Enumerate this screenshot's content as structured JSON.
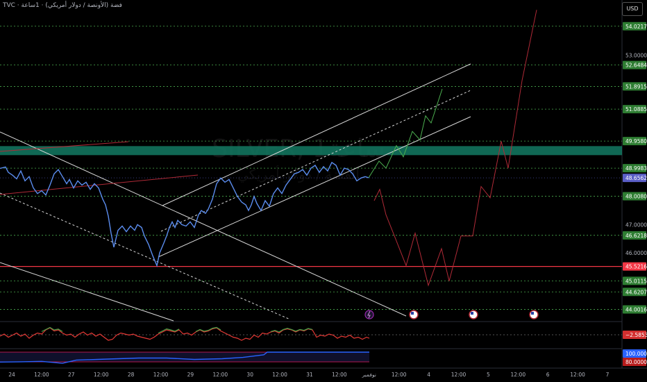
{
  "header": {
    "symbol_line": "TVC · فضة (الأونصة / دولار أمريكي) · 1ساعة",
    "currency": "USD"
  },
  "watermark": {
    "symbol": "SILVER, 1ساعة",
    "subtitle": "الفضة / دولار أمريكي"
  },
  "chart_data": {
    "type": "line",
    "title": "",
    "price_axis": {
      "range": [
        43.57,
        54.95
      ],
      "ticks": [
        "53.0000",
        "47.0000",
        "46.0000"
      ]
    },
    "time_axis": {
      "labels": [
        "24",
        "12:00",
        "27",
        "12:00",
        "28",
        "12:00",
        "29",
        "12:00",
        "30",
        "12:00",
        "31",
        "12:00",
        "نوفمبر",
        "12:00",
        "4",
        "12:00",
        "5",
        "12:00",
        "6",
        "12:00",
        "7"
      ]
    },
    "level_lines": [
      {
        "value": 54.0217,
        "label": "54.0217",
        "color": "#4caf50"
      },
      {
        "value": 52.6484,
        "label": "52.6484",
        "color": "#4caf50"
      },
      {
        "value": 51.8915,
        "label": "51.8915",
        "color": "#4caf50"
      },
      {
        "value": 51.0885,
        "label": "51.0885",
        "color": "#4caf50"
      },
      {
        "value": 49.958,
        "label": "49.9580",
        "color": "#4caf50"
      },
      {
        "value": 48.9983,
        "label": "48.9983",
        "color": "#4caf50"
      },
      {
        "value": 48.008,
        "label": "48.0080",
        "color": "#4caf50"
      },
      {
        "value": 46.6218,
        "label": "46.6218",
        "color": "#4caf50"
      },
      {
        "value": 45.5216,
        "label": "45.5216",
        "color": "#f23645"
      },
      {
        "value": 45.0115,
        "label": "45.0115",
        "color": "#4caf50"
      },
      {
        "value": 44.6207,
        "label": "44.6207",
        "color": "#4caf50"
      },
      {
        "value": 44.0016,
        "label": "44.0016",
        "color": "#4caf50"
      }
    ],
    "last_price": {
      "value": 48.6562,
      "label": "48.6562",
      "color": "#5b5fc7"
    },
    "resistance_zone": [
      49.46,
      49.78
    ],
    "series": [
      {
        "style": "price",
        "color": "#5b8def",
        "points": [
          [
            0,
            48.99
          ],
          [
            8,
            49.04
          ],
          [
            12,
            48.85
          ],
          [
            18,
            48.75
          ],
          [
            24,
            48.62
          ],
          [
            30,
            48.9
          ],
          [
            36,
            48.55
          ],
          [
            42,
            48.7
          ],
          [
            48,
            48.3
          ],
          [
            54,
            48.1
          ],
          [
            60,
            48.2
          ],
          [
            66,
            48.05
          ],
          [
            72,
            48.4
          ],
          [
            78,
            48.8
          ],
          [
            84,
            48.95
          ],
          [
            90,
            48.7
          ],
          [
            96,
            48.45
          ],
          [
            100,
            48.6
          ],
          [
            106,
            48.3
          ],
          [
            112,
            48.55
          ],
          [
            118,
            48.4
          ],
          [
            124,
            48.5
          ],
          [
            130,
            48.25
          ],
          [
            136,
            48.45
          ],
          [
            142,
            48.3
          ],
          [
            148,
            47.9
          ],
          [
            152,
            47.7
          ],
          [
            156,
            47.3
          ],
          [
            160,
            46.7
          ],
          [
            164,
            46.2
          ],
          [
            170,
            46.8
          ],
          [
            176,
            46.95
          ],
          [
            182,
            46.75
          ],
          [
            188,
            46.95
          ],
          [
            194,
            46.8
          ],
          [
            198,
            47.0
          ],
          [
            204,
            46.9
          ],
          [
            208,
            46.6
          ],
          [
            214,
            46.3
          ],
          [
            220,
            45.9
          ],
          [
            226,
            45.55
          ],
          [
            230,
            46.0
          ],
          [
            236,
            46.35
          ],
          [
            240,
            46.6
          ],
          [
            244,
            46.9
          ],
          [
            248,
            47.1
          ],
          [
            252,
            46.9
          ],
          [
            256,
            47.15
          ],
          [
            262,
            47.0
          ],
          [
            268,
            46.95
          ],
          [
            274,
            47.1
          ],
          [
            280,
            46.9
          ],
          [
            286,
            47.35
          ],
          [
            290,
            47.5
          ],
          [
            296,
            47.4
          ],
          [
            300,
            47.55
          ],
          [
            306,
            47.9
          ],
          [
            312,
            48.45
          ],
          [
            318,
            48.65
          ],
          [
            324,
            48.5
          ],
          [
            330,
            48.6
          ],
          [
            336,
            48.3
          ],
          [
            342,
            48.0
          ],
          [
            348,
            47.8
          ],
          [
            354,
            47.7
          ],
          [
            358,
            47.5
          ],
          [
            362,
            47.7
          ],
          [
            366,
            48.0
          ],
          [
            370,
            47.75
          ],
          [
            376,
            47.5
          ],
          [
            382,
            47.85
          ],
          [
            388,
            47.65
          ],
          [
            394,
            48.1
          ],
          [
            400,
            48.3
          ],
          [
            406,
            48.1
          ],
          [
            412,
            48.4
          ],
          [
            418,
            48.6
          ],
          [
            424,
            48.8
          ],
          [
            430,
            48.85
          ],
          [
            436,
            48.95
          ],
          [
            442,
            48.75
          ],
          [
            448,
            49.0
          ],
          [
            454,
            49.1
          ],
          [
            460,
            48.85
          ],
          [
            466,
            49.05
          ],
          [
            472,
            48.9
          ],
          [
            478,
            49.2
          ],
          [
            484,
            49.1
          ],
          [
            490,
            48.75
          ],
          [
            496,
            49.0
          ],
          [
            502,
            48.95
          ],
          [
            508,
            48.8
          ],
          [
            514,
            48.55
          ],
          [
            520,
            48.65
          ],
          [
            526,
            48.7
          ],
          [
            531,
            48.66
          ]
        ]
      },
      {
        "style": "projection-up",
        "color": "#4caf50",
        "points": [
          [
            531,
            48.66
          ],
          [
            546,
            49.25
          ],
          [
            556,
            49.0
          ],
          [
            571,
            49.8
          ],
          [
            581,
            49.4
          ],
          [
            594,
            50.3
          ],
          [
            605,
            50.0
          ],
          [
            613,
            50.85
          ],
          [
            621,
            50.6
          ],
          [
            637,
            51.8
          ]
        ]
      },
      {
        "style": "projection-down",
        "color": "#b02a37",
        "points": [
          [
            539,
            47.85
          ],
          [
            547,
            48.25
          ],
          [
            556,
            47.35
          ],
          [
            569,
            46.55
          ],
          [
            585,
            45.55
          ],
          [
            598,
            46.7
          ],
          [
            617,
            44.85
          ],
          [
            636,
            46.15
          ],
          [
            647,
            45.0
          ],
          [
            664,
            46.6
          ],
          [
            681,
            46.6
          ],
          [
            693,
            48.35
          ],
          [
            706,
            47.95
          ],
          [
            722,
            49.95
          ],
          [
            732,
            49.0
          ],
          [
            752,
            52.1
          ],
          [
            773,
            54.6
          ]
        ]
      }
    ],
    "rsi": {
      "series_red": [
        [
          0,
          0.4
        ],
        [
          6,
          0.5
        ],
        [
          12,
          0.35
        ],
        [
          18,
          0.45
        ],
        [
          24,
          0.55
        ],
        [
          30,
          0.4
        ],
        [
          36,
          0.5
        ],
        [
          42,
          0.3
        ],
        [
          48,
          0.45
        ],
        [
          54,
          0.55
        ],
        [
          60,
          0.5
        ],
        [
          66,
          0.7
        ],
        [
          72,
          0.8
        ],
        [
          78,
          0.65
        ],
        [
          84,
          0.7
        ],
        [
          90,
          0.55
        ],
        [
          96,
          0.45
        ],
        [
          102,
          0.5
        ],
        [
          108,
          0.35
        ],
        [
          114,
          0.5
        ],
        [
          120,
          0.6
        ],
        [
          126,
          0.45
        ],
        [
          132,
          0.55
        ],
        [
          138,
          0.4
        ],
        [
          144,
          0.5
        ],
        [
          150,
          0.35
        ],
        [
          156,
          0.2
        ],
        [
          162,
          0.25
        ],
        [
          168,
          0.45
        ],
        [
          174,
          0.55
        ],
        [
          180,
          0.5
        ],
        [
          186,
          0.45
        ],
        [
          192,
          0.5
        ],
        [
          198,
          0.4
        ],
        [
          204,
          0.35
        ],
        [
          210,
          0.3
        ],
        [
          216,
          0.25
        ],
        [
          222,
          0.35
        ],
        [
          228,
          0.5
        ],
        [
          234,
          0.6
        ],
        [
          240,
          0.7
        ],
        [
          246,
          0.65
        ],
        [
          252,
          0.6
        ],
        [
          258,
          0.7
        ],
        [
          264,
          0.5
        ],
        [
          270,
          0.55
        ],
        [
          276,
          0.45
        ],
        [
          282,
          0.6
        ],
        [
          288,
          0.7
        ],
        [
          294,
          0.6
        ],
        [
          300,
          0.65
        ],
        [
          306,
          0.75
        ],
        [
          312,
          0.8
        ],
        [
          318,
          0.65
        ],
        [
          324,
          0.55
        ],
        [
          330,
          0.45
        ],
        [
          336,
          0.35
        ],
        [
          342,
          0.3
        ],
        [
          348,
          0.2
        ],
        [
          354,
          0.3
        ],
        [
          360,
          0.25
        ],
        [
          366,
          0.45
        ],
        [
          372,
          0.35
        ],
        [
          378,
          0.55
        ],
        [
          384,
          0.5
        ],
        [
          390,
          0.6
        ],
        [
          396,
          0.65
        ],
        [
          402,
          0.55
        ],
        [
          408,
          0.7
        ],
        [
          414,
          0.75
        ],
        [
          420,
          0.7
        ],
        [
          426,
          0.6
        ],
        [
          432,
          0.7
        ],
        [
          438,
          0.65
        ],
        [
          444,
          0.75
        ],
        [
          450,
          0.7
        ],
        [
          456,
          0.35
        ],
        [
          462,
          0.45
        ],
        [
          468,
          0.4
        ],
        [
          474,
          0.5
        ],
        [
          480,
          0.45
        ],
        [
          486,
          0.3
        ],
        [
          492,
          0.4
        ],
        [
          498,
          0.35
        ],
        [
          504,
          0.45
        ],
        [
          510,
          0.3
        ],
        [
          516,
          0.35
        ],
        [
          522,
          0.25
        ],
        [
          528,
          0.35
        ],
        [
          532,
          0.3
        ]
      ],
      "series_green": [
        [
          60,
          0.62
        ],
        [
          66,
          0.72
        ],
        [
          72,
          0.82
        ],
        [
          78,
          0.7
        ],
        [
          84,
          0.74
        ],
        [
          90,
          0.62
        ],
        [
          228,
          0.55
        ],
        [
          234,
          0.65
        ],
        [
          240,
          0.75
        ],
        [
          246,
          0.7
        ],
        [
          252,
          0.64
        ],
        [
          258,
          0.74
        ],
        [
          282,
          0.62
        ],
        [
          288,
          0.72
        ],
        [
          294,
          0.64
        ],
        [
          300,
          0.68
        ],
        [
          306,
          0.78
        ],
        [
          312,
          0.82
        ],
        [
          318,
          0.7
        ],
        [
          390,
          0.62
        ],
        [
          396,
          0.68
        ],
        [
          402,
          0.6
        ],
        [
          408,
          0.72
        ],
        [
          414,
          0.78
        ],
        [
          420,
          0.72
        ],
        [
          426,
          0.64
        ],
        [
          432,
          0.72
        ],
        [
          438,
          0.68
        ],
        [
          444,
          0.77
        ],
        [
          450,
          0.72
        ]
      ],
      "value_label": "−2.5853"
    },
    "oscillator2": {
      "points": [
        [
          0,
          0.25
        ],
        [
          30,
          0.27
        ],
        [
          60,
          0.3
        ],
        [
          90,
          0.15
        ],
        [
          110,
          0.4
        ],
        [
          140,
          0.45
        ],
        [
          170,
          0.5
        ],
        [
          200,
          0.55
        ],
        [
          240,
          0.55
        ],
        [
          280,
          0.45
        ],
        [
          320,
          0.5
        ],
        [
          350,
          0.6
        ],
        [
          380,
          0.8
        ],
        [
          385,
          1.0
        ],
        [
          532,
          1.0
        ]
      ],
      "label_top": "100.0000",
      "label_bottom": "80.0000"
    }
  }
}
